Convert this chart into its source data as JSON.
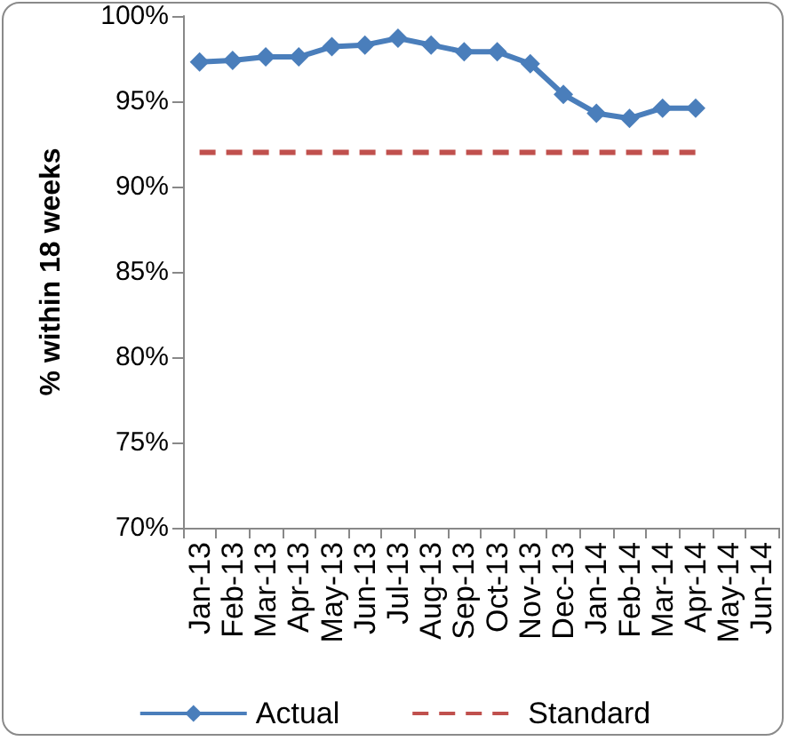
{
  "chart_data": {
    "type": "line",
    "ylabel": "% within 18 weeks",
    "categories": [
      "Jan-13",
      "Feb-13",
      "Mar-13",
      "Apr-13",
      "May-13",
      "Jun-13",
      "Jul-13",
      "Aug-13",
      "Sep-13",
      "Oct-13",
      "Nov-13",
      "Dec-13",
      "Jan-14",
      "Feb-14",
      "Mar-14",
      "Apr-14",
      "May-14",
      "Jun-14"
    ],
    "series": [
      {
        "name": "Actual",
        "color": "#4a7ebb",
        "marker": "diamond",
        "line_style": "solid",
        "values": [
          97.3,
          97.4,
          97.6,
          97.6,
          98.2,
          98.3,
          98.7,
          98.3,
          97.9,
          97.9,
          97.2,
          95.4,
          94.3,
          94.0,
          94.6,
          94.6,
          null,
          null
        ]
      },
      {
        "name": "Standard",
        "color": "#c0504d",
        "marker": "none",
        "line_style": "dashed",
        "values": [
          92,
          92,
          92,
          92,
          92,
          92,
          92,
          92,
          92,
          92,
          92,
          92,
          92,
          92,
          92,
          92,
          null,
          null
        ]
      }
    ],
    "ylim": [
      70,
      100
    ],
    "yticks": [
      {
        "value": 70,
        "label": "70%"
      },
      {
        "value": 75,
        "label": "75%"
      },
      {
        "value": 80,
        "label": "80%"
      },
      {
        "value": 85,
        "label": "85%"
      },
      {
        "value": 90,
        "label": "90%"
      },
      {
        "value": 95,
        "label": "95%"
      },
      {
        "value": 100,
        "label": "100%"
      }
    ],
    "grid": false,
    "legend": "bottom"
  }
}
